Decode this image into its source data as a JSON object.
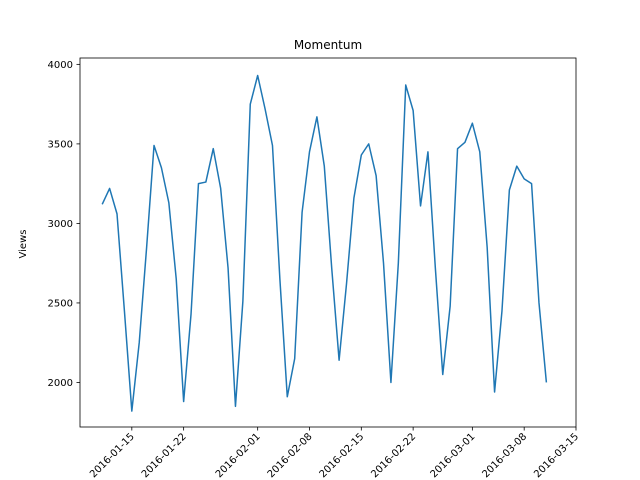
{
  "chart_data": {
    "type": "line",
    "title": "Momentum",
    "xlabel": "",
    "ylabel": "Views",
    "x_type": "date",
    "xlim": [
      "2016-01-08",
      "2016-03-15"
    ],
    "ylim": [
      1720,
      4040
    ],
    "y_ticks": [
      2000,
      2500,
      3000,
      3500,
      4000
    ],
    "x_ticks": [
      {
        "date": "2016-01-15",
        "label": "2016-01-15"
      },
      {
        "date": "2016-01-22",
        "label": "2016-01-22"
      },
      {
        "date": "2016-02-01",
        "label": "2016-02-01"
      },
      {
        "date": "2016-02-08",
        "label": "2016-02-08"
      },
      {
        "date": "2016-02-15",
        "label": "2016-02-15"
      },
      {
        "date": "2016-02-22",
        "label": "2016-02-22"
      },
      {
        "date": "2016-03-01",
        "label": "2016-03-01"
      },
      {
        "date": "2016-03-08",
        "label": "2016-03-08"
      },
      {
        "date": "2016-03-15",
        "label": "2016-03-15"
      }
    ],
    "grid": false,
    "series": [
      {
        "name": "",
        "color": "#1f77b4",
        "x": [
          "2016-01-11",
          "2016-01-12",
          "2016-01-13",
          "2016-01-14",
          "2016-01-15",
          "2016-01-16",
          "2016-01-17",
          "2016-01-18",
          "2016-01-19",
          "2016-01-20",
          "2016-01-21",
          "2016-01-22",
          "2016-01-23",
          "2016-01-24",
          "2016-01-25",
          "2016-01-26",
          "2016-01-27",
          "2016-01-28",
          "2016-01-29",
          "2016-01-30",
          "2016-01-31",
          "2016-02-01",
          "2016-02-02",
          "2016-02-03",
          "2016-02-04",
          "2016-02-05",
          "2016-02-06",
          "2016-02-07",
          "2016-02-08",
          "2016-02-09",
          "2016-02-10",
          "2016-02-11",
          "2016-02-12",
          "2016-02-13",
          "2016-02-14",
          "2016-02-15",
          "2016-02-16",
          "2016-02-17",
          "2016-02-18",
          "2016-02-19",
          "2016-02-20",
          "2016-02-21",
          "2016-02-22",
          "2016-02-23",
          "2016-02-24",
          "2016-02-25",
          "2016-02-26",
          "2016-02-27",
          "2016-02-28",
          "2016-02-29",
          "2016-03-01",
          "2016-03-02",
          "2016-03-03",
          "2016-03-04",
          "2016-03-05",
          "2016-03-06",
          "2016-03-07",
          "2016-03-08",
          "2016-03-09",
          "2016-03-10",
          "2016-03-11",
          "2016-03-12"
        ],
        "values": [
          3120,
          3220,
          3060,
          2450,
          1820,
          2250,
          2850,
          3490,
          3350,
          3130,
          2650,
          1880,
          2430,
          3250,
          3260,
          3470,
          3220,
          2720,
          1850,
          2510,
          3750,
          3930,
          3720,
          3490,
          2650,
          1910,
          2150,
          3070,
          3450,
          3670,
          3360,
          2720,
          2140,
          2620,
          3160,
          3430,
          3500,
          3300,
          2750,
          2000,
          2750,
          3870,
          3710,
          3110,
          3450,
          2720,
          2050,
          2480,
          3470,
          3510,
          3630,
          3450,
          2850,
          1940,
          2450,
          3210,
          3360,
          3280,
          3250,
          2500,
          2000,
          null
        ]
      }
    ]
  }
}
